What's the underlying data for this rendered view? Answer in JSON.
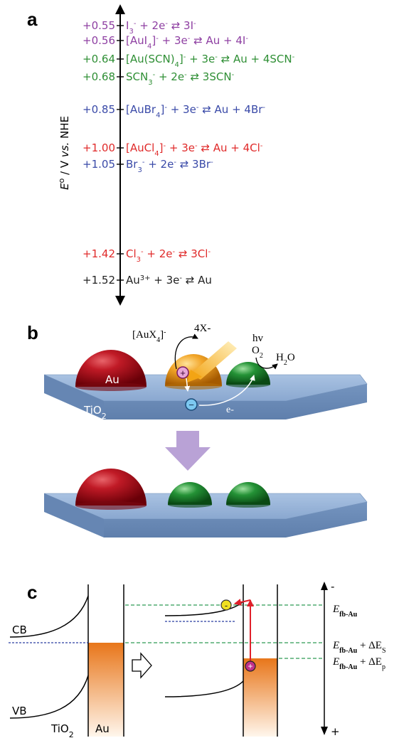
{
  "panel_a": {
    "letter": "a",
    "axis_label": {
      "symbol": "E",
      "sup": "o",
      "rest": " / V ",
      "vs": "vs.",
      "end": " NHE"
    },
    "rows": [
      {
        "value": "+0.55",
        "color": "#8e3fa2",
        "eq": [
          {
            "t": "I"
          },
          {
            "sub": "3"
          },
          {
            "sup": "-"
          },
          {
            "t": " + 2e"
          },
          {
            "sup": "-"
          },
          {
            "t": " ⇄ 3I"
          },
          {
            "sup": "-"
          }
        ]
      },
      {
        "value": "+0.56",
        "color": "#8e3fa2",
        "eq": [
          {
            "t": "[AuI"
          },
          {
            "sub": "4"
          },
          {
            "t": "]"
          },
          {
            "sup": "-"
          },
          {
            "t": " + 3e"
          },
          {
            "sup": "-"
          },
          {
            "t": " ⇄ Au + 4I"
          },
          {
            "sup": "-"
          }
        ]
      },
      {
        "value": "+0.64",
        "color": "#2f8f35",
        "eq": [
          {
            "t": "[Au(SCN)"
          },
          {
            "sub": "4"
          },
          {
            "t": "]"
          },
          {
            "sup": "-"
          },
          {
            "t": " + 3e"
          },
          {
            "sup": "-"
          },
          {
            "t": " ⇄ Au + 4SCN"
          },
          {
            "sup": "-"
          }
        ]
      },
      {
        "value": "+0.68",
        "color": "#2f8f35",
        "eq": [
          {
            "t": "SCN"
          },
          {
            "sub": "3"
          },
          {
            "sup": "-"
          },
          {
            "t": " + 2e"
          },
          {
            "sup": "-"
          },
          {
            "t": " ⇄ 3SCN"
          },
          {
            "sup": "-"
          }
        ]
      },
      {
        "value": "+0.85",
        "color": "#3a4aa8",
        "eq": [
          {
            "t": "[AuBr"
          },
          {
            "sub": "4"
          },
          {
            "t": "]"
          },
          {
            "sup": "-"
          },
          {
            "t": " + 3e"
          },
          {
            "sup": "-"
          },
          {
            "t": " ⇄ Au + 4Br"
          },
          {
            "sup": "-"
          }
        ]
      },
      {
        "value": "+1.00",
        "color": "#e02a2a",
        "eq": [
          {
            "t": "[AuCl"
          },
          {
            "sub": "4"
          },
          {
            "t": "]"
          },
          {
            "sup": "-"
          },
          {
            "t": " + 3e"
          },
          {
            "sup": "-"
          },
          {
            "t": " ⇄ Au + 4Cl"
          },
          {
            "sup": "-"
          }
        ]
      },
      {
        "value": "+1.05",
        "color": "#3a4aa8",
        "eq": [
          {
            "t": "Br"
          },
          {
            "sub": "3"
          },
          {
            "sup": "-"
          },
          {
            "t": " + 2e"
          },
          {
            "sup": "-"
          },
          {
            "t": " ⇄ 3Br"
          },
          {
            "sup": "-"
          }
        ]
      },
      {
        "value": "+1.42",
        "color": "#e02a2a",
        "eq": [
          {
            "t": "Cl"
          },
          {
            "sub": "3"
          },
          {
            "sup": "-"
          },
          {
            "t": " + 2e"
          },
          {
            "sup": "-"
          },
          {
            "t": " ⇄ 3Cl"
          },
          {
            "sup": "-"
          }
        ]
      },
      {
        "value": "+1.52",
        "color": "#222222",
        "eq": [
          {
            "t": "Au"
          },
          {
            "sup": "3+"
          },
          {
            "t": " + 3e"
          },
          {
            "sup": "-"
          },
          {
            "t": " ⇄ Au"
          }
        ]
      }
    ]
  },
  "panel_b": {
    "letter": "b",
    "au_label": "Au",
    "tio2_label": {
      "t": "TiO",
      "sub": "2"
    },
    "complex_label": {
      "t": "[AuX",
      "sub": "4",
      "tail": "]",
      "sup": "-"
    },
    "ligand_label": "4X-",
    "light_label": "hv",
    "o2_label": {
      "t": "O",
      "sub": "2"
    },
    "h2o_label": {
      "t": "H",
      "sub": "2",
      "tail": "O"
    },
    "hole_symbol": "+",
    "electron_symbol": "−",
    "electron_label": "e-",
    "colors": {
      "red_particle": "#b0101c",
      "gold_particle": "#f0a020",
      "green_particle": "#1f8a2e",
      "substrate": "#7f9fc6",
      "transform_arrow": "#b9a2d6"
    }
  },
  "panel_c": {
    "letter": "c",
    "cb_label": "CB",
    "vb_label": "VB",
    "tio2_label": {
      "t": "TiO",
      "sub": "2"
    },
    "au_label": "Au",
    "electron_symbol": "-",
    "hole_symbol": "+",
    "scale_top": "-",
    "scale_bottom": "+",
    "levels": [
      {
        "main": "E",
        "sub": "fb-Au",
        "extra": "",
        "extra_sub": ""
      },
      {
        "main": "E",
        "sub": "fb-Au",
        "extra": " + ΔE",
        "extra_sub": "S"
      },
      {
        "main": "E",
        "sub": "fb-Au",
        "extra": " + ΔE",
        "extra_sub": "p"
      }
    ],
    "colors": {
      "fermi_fill_top": "#e8761a",
      "dashed_green": "#2e9a55",
      "dashed_blue": "#2a3ea0",
      "arrow_red": "#e0202a",
      "electron": "#f0e020",
      "hole": "#c0308a"
    }
  }
}
